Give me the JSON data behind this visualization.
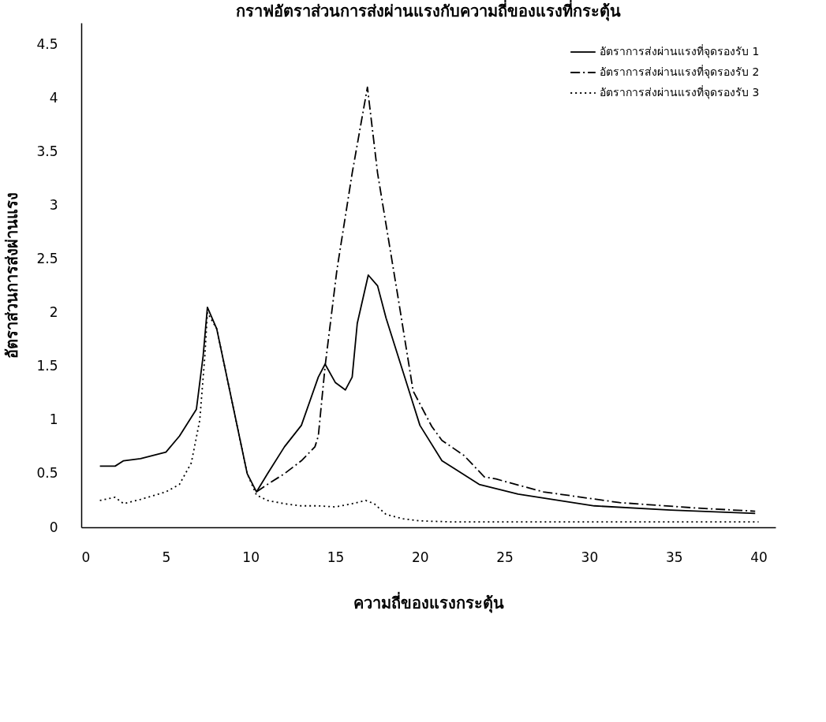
{
  "chart_data": {
    "type": "line",
    "title": "กราฟอัตราส่วนการส่งผ่านแรงกับความถี่ของแรงที่กระตุ้น",
    "xlabel": "ความถี่ของแรงกระตุ้น",
    "ylabel": "อัตราส่วนการส่งผ่านแรง",
    "xlim": [
      0,
      41
    ],
    "ylim": [
      0,
      4.7
    ],
    "xticks": [
      0,
      5,
      10,
      15,
      20,
      25,
      30,
      35,
      40
    ],
    "yticks": [
      0,
      0.5,
      1,
      1.5,
      2,
      2.5,
      3,
      3.5,
      4,
      4.5
    ],
    "grid": false,
    "legend": "top right",
    "marker": "none",
    "series": [
      {
        "name": "อัตราการส่งผ่านแรงที่จุดรองรับ 1",
        "color": "#000000",
        "line_style": "solid",
        "x": [
          1.1,
          2.0,
          2.5,
          3.5,
          5,
          5.8,
          6.8,
          7.2,
          7.45,
          8,
          9,
          9.8,
          10.35,
          11,
          12,
          13,
          14,
          14.4,
          15,
          15.6,
          16,
          16.3,
          16.95,
          17.5,
          18,
          19,
          20,
          21.3,
          22,
          23.5,
          25.8,
          27,
          30.3,
          34.8,
          39.8
        ],
        "values": [
          0.57,
          0.57,
          0.62,
          0.64,
          0.7,
          0.85,
          1.1,
          1.6,
          2.05,
          1.85,
          1.1,
          0.5,
          0.33,
          0.5,
          0.75,
          0.95,
          1.4,
          1.52,
          1.35,
          1.28,
          1.4,
          1.9,
          2.35,
          2.25,
          1.95,
          1.45,
          0.95,
          0.62,
          0.55,
          0.4,
          0.31,
          0.28,
          0.2,
          0.16,
          0.13
        ]
      },
      {
        "name": "อัตราการส่งผ่านแรงที่จุดรองรับ 2",
        "color": "#000000",
        "line_style": "dashed",
        "x": [
          10.35,
          11,
          12,
          13,
          13.8,
          14.0,
          14.4,
          15.1,
          16.0,
          16.9,
          17.5,
          18.7,
          19.6,
          20.7,
          21.3,
          22.6,
          23.8,
          24.5,
          27.3,
          31.8,
          36.3,
          39.8
        ],
        "values": [
          0.33,
          0.4,
          0.5,
          0.62,
          0.75,
          0.85,
          1.5,
          2.4,
          3.3,
          4.1,
          3.3,
          2.15,
          1.27,
          0.94,
          0.81,
          0.67,
          0.47,
          0.45,
          0.33,
          0.23,
          0.18,
          0.15
        ]
      },
      {
        "name": "อัตราการส่งผ่านแรงที่จุดรองรับ 3",
        "color": "#000000",
        "line_style": "dotted",
        "x": [
          1.1,
          2.0,
          2.5,
          3.5,
          5,
          5.8,
          6.5,
          7,
          7.3,
          7.45,
          8,
          9,
          9.8,
          10.35,
          11,
          12,
          13,
          14,
          15,
          16,
          16.8,
          17.3,
          18,
          19,
          20,
          22,
          30,
          40
        ],
        "values": [
          0.25,
          0.28,
          0.22,
          0.26,
          0.33,
          0.4,
          0.6,
          1.0,
          1.6,
          2.0,
          1.85,
          1.1,
          0.5,
          0.3,
          0.25,
          0.22,
          0.2,
          0.2,
          0.19,
          0.22,
          0.25,
          0.22,
          0.12,
          0.08,
          0.06,
          0.05,
          0.05,
          0.05
        ]
      }
    ]
  }
}
